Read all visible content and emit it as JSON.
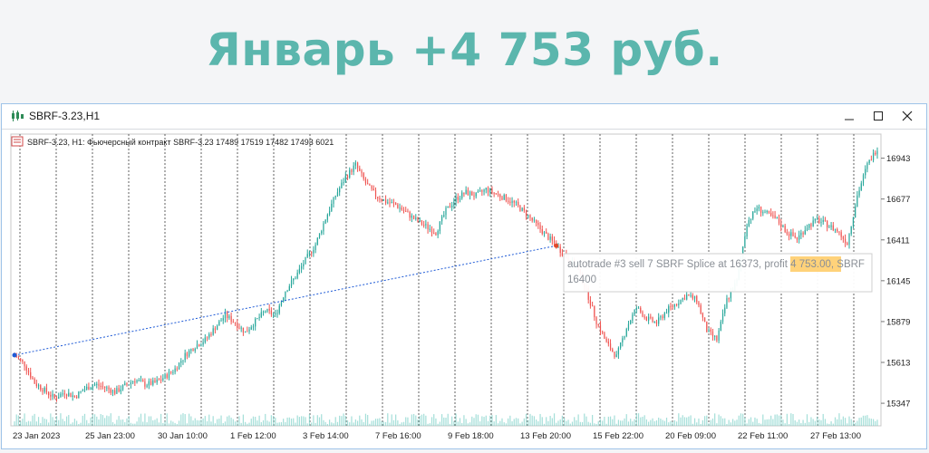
{
  "banner": {
    "title": "Январь +4 753 руб."
  },
  "window": {
    "title": "SBRF-3.23,H1"
  },
  "chart_data": {
    "type": "candlestick",
    "info_line": "SBRF-3.23, H1: Фьючерсный контракт SBRF-3.23  17489 17519 17482 17493  6021",
    "ylim": [
      15200,
      17100
    ],
    "y_ticks": [
      15347,
      15613,
      15879,
      16145,
      16411,
      16677,
      16943
    ],
    "x_ticks": [
      "23 Jan 2023",
      "25 Jan 23:00",
      "30 Jan 10:00",
      "1 Feb 12:00",
      "3 Feb 14:00",
      "7 Feb 16:00",
      "9 Feb 18:00",
      "13 Feb 20:00",
      "15 Feb 22:00",
      "20 Feb 09:00",
      "22 Feb 11:00",
      "27 Feb 13:00"
    ],
    "price_path": [
      [
        0,
        15660
      ],
      [
        5,
        15600
      ],
      [
        10,
        15480
      ],
      [
        15,
        15430
      ],
      [
        20,
        15380
      ],
      [
        25,
        15420
      ],
      [
        30,
        15390
      ],
      [
        35,
        15440
      ],
      [
        40,
        15470
      ],
      [
        45,
        15450
      ],
      [
        50,
        15420
      ],
      [
        55,
        15460
      ],
      [
        60,
        15500
      ],
      [
        65,
        15470
      ],
      [
        70,
        15480
      ],
      [
        75,
        15520
      ],
      [
        80,
        15570
      ],
      [
        85,
        15660
      ],
      [
        90,
        15720
      ],
      [
        95,
        15760
      ],
      [
        100,
        15840
      ],
      [
        105,
        15920
      ],
      [
        110,
        15870
      ],
      [
        115,
        15810
      ],
      [
        120,
        15880
      ],
      [
        125,
        15950
      ],
      [
        130,
        15920
      ],
      [
        135,
        16080
      ],
      [
        140,
        16170
      ],
      [
        145,
        16280
      ],
      [
        150,
        16380
      ],
      [
        155,
        16550
      ],
      [
        160,
        16700
      ],
      [
        165,
        16820
      ],
      [
        170,
        16900
      ],
      [
        175,
        16780
      ],
      [
        180,
        16700
      ],
      [
        185,
        16660
      ],
      [
        190,
        16640
      ],
      [
        195,
        16590
      ],
      [
        200,
        16540
      ],
      [
        205,
        16500
      ],
      [
        210,
        16460
      ],
      [
        215,
        16600
      ],
      [
        220,
        16680
      ],
      [
        225,
        16720
      ],
      [
        230,
        16700
      ],
      [
        235,
        16740
      ],
      [
        240,
        16710
      ],
      [
        245,
        16680
      ],
      [
        250,
        16640
      ],
      [
        255,
        16580
      ],
      [
        260,
        16510
      ],
      [
        265,
        16440
      ],
      [
        270,
        16373
      ],
      [
        275,
        16300
      ],
      [
        280,
        16240
      ],
      [
        285,
        16080
      ],
      [
        290,
        15880
      ],
      [
        295,
        15740
      ],
      [
        300,
        15650
      ],
      [
        305,
        15840
      ],
      [
        310,
        15970
      ],
      [
        315,
        15900
      ],
      [
        320,
        15870
      ],
      [
        325,
        15950
      ],
      [
        330,
        16000
      ],
      [
        335,
        16050
      ],
      [
        340,
        16020
      ],
      [
        345,
        15820
      ],
      [
        350,
        15760
      ],
      [
        355,
        16020
      ],
      [
        360,
        16140
      ],
      [
        365,
        16520
      ],
      [
        370,
        16620
      ],
      [
        375,
        16580
      ],
      [
        380,
        16540
      ],
      [
        385,
        16460
      ],
      [
        390,
        16420
      ],
      [
        395,
        16500
      ],
      [
        400,
        16540
      ],
      [
        405,
        16510
      ],
      [
        410,
        16470
      ],
      [
        415,
        16390
      ],
      [
        420,
        16700
      ],
      [
        425,
        16900
      ],
      [
        430,
        17010
      ]
    ],
    "trade": {
      "from": {
        "x": 0,
        "y": 15660
      },
      "to": {
        "x": 270,
        "y": 16373
      }
    },
    "annotation": {
      "prefix": "autotrade #3 sell 7 SBRF Splice at 16373, profit ",
      "profit": "4 753.00",
      "suffix": ", SBRF",
      "line2": "16400"
    },
    "colors": {
      "up": "#26a69a",
      "down": "#ef5350",
      "trade_line": "#1f5bd6",
      "profit_highlight": "#ffd27a",
      "banner": "#5bb6ad"
    }
  }
}
